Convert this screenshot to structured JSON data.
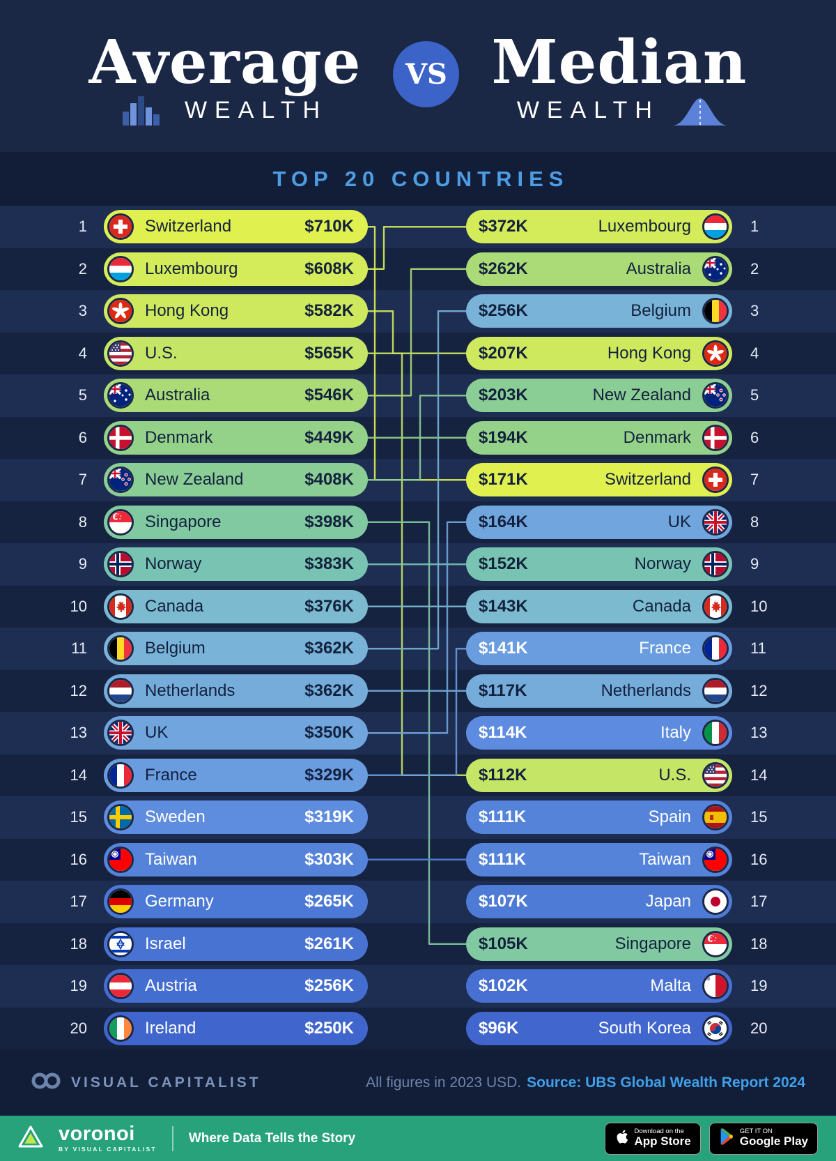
{
  "header": {
    "title_left": "Average",
    "wealth_left": "WEALTH",
    "vs": "VS",
    "title_right": "Median",
    "wealth_right": "WEALTH"
  },
  "subtitle": "TOP 20 COUNTRIES",
  "footer": {
    "brand": "VISUAL CAPITALIST",
    "note": "All figures in 2023 USD.",
    "source": "Source: UBS Global Wealth Report 2024"
  },
  "bottombar": {
    "brand": "voronoi",
    "brand_sub": "BY VISUAL CAPITALIST",
    "tagline": "Where Data Tells the Story",
    "appstore_top": "Download on the",
    "appstore_bottom": "App Store",
    "gplay_top": "GET IT ON",
    "gplay_bottom": "Google Play"
  },
  "chart_data": {
    "type": "table",
    "title": "Average vs Median Wealth",
    "subtitle": "Top 20 Countries",
    "unit": "USD thousands (2023)",
    "source": "UBS Global Wealth Report 2024",
    "average_top20": [
      {
        "rank": 1,
        "country": "Switzerland",
        "flag": "ch",
        "value_k": 710,
        "label": "$710K",
        "color": "#dff04f",
        "text": "dark"
      },
      {
        "rank": 2,
        "country": "Luxembourg",
        "flag": "lu",
        "value_k": 608,
        "label": "$608K",
        "color": "#d4ec59",
        "text": "dark"
      },
      {
        "rank": 3,
        "country": "Hong Kong",
        "flag": "hk",
        "value_k": 582,
        "label": "$582K",
        "color": "#cfe95e",
        "text": "dark"
      },
      {
        "rank": 4,
        "country": "U.S.",
        "flag": "us",
        "value_k": 565,
        "label": "$565K",
        "color": "#c5e567",
        "text": "dark"
      },
      {
        "rank": 5,
        "country": "Australia",
        "flag": "au",
        "value_k": 546,
        "label": "$546K",
        "color": "#abdb77",
        "text": "dark"
      },
      {
        "rank": 6,
        "country": "Denmark",
        "flag": "dk",
        "value_k": 449,
        "label": "$449K",
        "color": "#94d28a",
        "text": "dark"
      },
      {
        "rank": 7,
        "country": "New Zealand",
        "flag": "nz",
        "value_k": 408,
        "label": "$408K",
        "color": "#8bce95",
        "text": "dark"
      },
      {
        "rank": 8,
        "country": "Singapore",
        "flag": "sg",
        "value_k": 398,
        "label": "$398K",
        "color": "#80c9a1",
        "text": "dark"
      },
      {
        "rank": 9,
        "country": "Norway",
        "flag": "no",
        "value_k": 383,
        "label": "$383K",
        "color": "#78c3b2",
        "text": "dark"
      },
      {
        "rank": 10,
        "country": "Canada",
        "flag": "ca",
        "value_k": 376,
        "label": "$376K",
        "color": "#7cbad0",
        "text": "dark"
      },
      {
        "rank": 11,
        "country": "Belgium",
        "flag": "be",
        "value_k": 362,
        "label": "$362K",
        "color": "#79b3d7",
        "text": "dark"
      },
      {
        "rank": 12,
        "country": "Netherlands",
        "flag": "nl",
        "value_k": 362,
        "label": "$362K",
        "color": "#75acda",
        "text": "dark"
      },
      {
        "rank": 13,
        "country": "UK",
        "flag": "uk",
        "value_k": 350,
        "label": "$350K",
        "color": "#70a5dd",
        "text": "dark"
      },
      {
        "rank": 14,
        "country": "France",
        "flag": "fr",
        "value_k": 329,
        "label": "$329K",
        "color": "#6a9ce0",
        "text": "dark"
      },
      {
        "rank": 15,
        "country": "Sweden",
        "flag": "se",
        "value_k": 319,
        "label": "$319K",
        "color": "#5e8cdf",
        "text": "light"
      },
      {
        "rank": 16,
        "country": "Taiwan",
        "flag": "tw",
        "value_k": 303,
        "label": "$303K",
        "color": "#5583da",
        "text": "light"
      },
      {
        "rank": 17,
        "country": "Germany",
        "flag": "de",
        "value_k": 265,
        "label": "$265K",
        "color": "#4b79d5",
        "text": "light"
      },
      {
        "rank": 18,
        "country": "Israel",
        "flag": "il",
        "value_k": 261,
        "label": "$261K",
        "color": "#4873d3",
        "text": "light"
      },
      {
        "rank": 19,
        "country": "Austria",
        "flag": "at",
        "value_k": 256,
        "label": "$256K",
        "color": "#446dd0",
        "text": "light"
      },
      {
        "rank": 20,
        "country": "Ireland",
        "flag": "ie",
        "value_k": 250,
        "label": "$250K",
        "color": "#4066cd",
        "text": "light"
      }
    ],
    "median_top20": [
      {
        "rank": 1,
        "country": "Luxembourg",
        "flag": "lu",
        "value_k": 372,
        "label": "$372K",
        "color": "#d4ec59",
        "text": "dark"
      },
      {
        "rank": 2,
        "country": "Australia",
        "flag": "au",
        "value_k": 262,
        "label": "$262K",
        "color": "#abdb77",
        "text": "dark"
      },
      {
        "rank": 3,
        "country": "Belgium",
        "flag": "be",
        "value_k": 256,
        "label": "$256K",
        "color": "#79b3d7",
        "text": "dark"
      },
      {
        "rank": 4,
        "country": "Hong Kong",
        "flag": "hk",
        "value_k": 207,
        "label": "$207K",
        "color": "#cfe95e",
        "text": "dark"
      },
      {
        "rank": 5,
        "country": "New Zealand",
        "flag": "nz",
        "value_k": 203,
        "label": "$203K",
        "color": "#8bce95",
        "text": "dark"
      },
      {
        "rank": 6,
        "country": "Denmark",
        "flag": "dk",
        "value_k": 194,
        "label": "$194K",
        "color": "#94d28a",
        "text": "dark"
      },
      {
        "rank": 7,
        "country": "Switzerland",
        "flag": "ch",
        "value_k": 171,
        "label": "$171K",
        "color": "#dff04f",
        "text": "dark"
      },
      {
        "rank": 8,
        "country": "UK",
        "flag": "uk",
        "value_k": 164,
        "label": "$164K",
        "color": "#70a5dd",
        "text": "dark"
      },
      {
        "rank": 9,
        "country": "Norway",
        "flag": "no",
        "value_k": 152,
        "label": "$152K",
        "color": "#78c3b2",
        "text": "dark"
      },
      {
        "rank": 10,
        "country": "Canada",
        "flag": "ca",
        "value_k": 143,
        "label": "$143K",
        "color": "#7cbad0",
        "text": "dark"
      },
      {
        "rank": 11,
        "country": "France",
        "flag": "fr",
        "value_k": 141,
        "label": "$141K",
        "color": "#6a9ce0",
        "text": "light"
      },
      {
        "rank": 12,
        "country": "Netherlands",
        "flag": "nl",
        "value_k": 117,
        "label": "$117K",
        "color": "#75acda",
        "text": "dark"
      },
      {
        "rank": 13,
        "country": "Italy",
        "flag": "it",
        "value_k": 114,
        "label": "$114K",
        "color": "#5d8bdf",
        "text": "light"
      },
      {
        "rank": 14,
        "country": "U.S.",
        "flag": "us",
        "value_k": 112,
        "label": "$112K",
        "color": "#c5e567",
        "text": "dark"
      },
      {
        "rank": 15,
        "country": "Spain",
        "flag": "es",
        "value_k": 111,
        "label": "$111K",
        "color": "#5583da",
        "text": "light"
      },
      {
        "rank": 16,
        "country": "Taiwan",
        "flag": "tw",
        "value_k": 111,
        "label": "$111K",
        "color": "#5583da",
        "text": "light"
      },
      {
        "rank": 17,
        "country": "Japan",
        "flag": "jp",
        "value_k": 107,
        "label": "$107K",
        "color": "#4d7bd6",
        "text": "light"
      },
      {
        "rank": 18,
        "country": "Singapore",
        "flag": "sg",
        "value_k": 105,
        "label": "$105K",
        "color": "#80c9a1",
        "text": "dark"
      },
      {
        "rank": 19,
        "country": "Malta",
        "flag": "mt",
        "value_k": 102,
        "label": "$102K",
        "color": "#4770d2",
        "text": "light"
      },
      {
        "rank": 20,
        "country": "South Korea",
        "flag": "kr",
        "value_k": 96,
        "label": "$96K",
        "color": "#4166ce",
        "text": "light"
      }
    ],
    "links": [
      {
        "country": "Switzerland",
        "avg_rank": 1,
        "med_rank": 7
      },
      {
        "country": "Luxembourg",
        "avg_rank": 2,
        "med_rank": 1
      },
      {
        "country": "Hong Kong",
        "avg_rank": 3,
        "med_rank": 4
      },
      {
        "country": "U.S.",
        "avg_rank": 4,
        "med_rank": 14
      },
      {
        "country": "Australia",
        "avg_rank": 5,
        "med_rank": 2
      },
      {
        "country": "Denmark",
        "avg_rank": 6,
        "med_rank": 6
      },
      {
        "country": "New Zealand",
        "avg_rank": 7,
        "med_rank": 5
      },
      {
        "country": "Singapore",
        "avg_rank": 8,
        "med_rank": 18
      },
      {
        "country": "Norway",
        "avg_rank": 9,
        "med_rank": 9
      },
      {
        "country": "Canada",
        "avg_rank": 10,
        "med_rank": 10
      },
      {
        "country": "Belgium",
        "avg_rank": 11,
        "med_rank": 3
      },
      {
        "country": "Netherlands",
        "avg_rank": 12,
        "med_rank": 12
      },
      {
        "country": "UK",
        "avg_rank": 13,
        "med_rank": 8
      },
      {
        "country": "France",
        "avg_rank": 14,
        "med_rank": 11
      },
      {
        "country": "Taiwan",
        "avg_rank": 16,
        "med_rank": 16
      }
    ]
  }
}
